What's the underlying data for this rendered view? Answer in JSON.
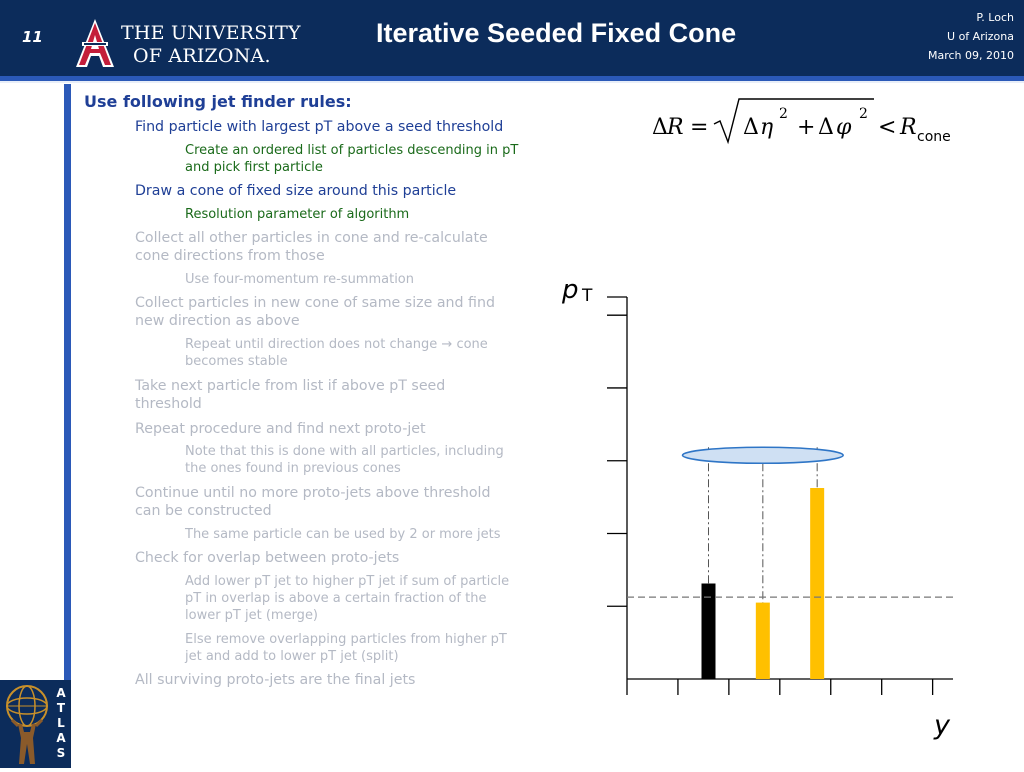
{
  "header": {
    "slide_number": "11",
    "university_line1": "THE UNIVERSITY",
    "university_line2": "OF ARIZONA.",
    "title": "Iterative Seeded Fixed Cone",
    "author": "P. Loch",
    "affiliation": "U of Arizona",
    "date": "March 09, 2010"
  },
  "colors": {
    "header_bg": "#0c2c5b",
    "accent_blue": "#2b59b8",
    "arizona_red": "#c41e3a",
    "level1_text": "#1f3f96",
    "level2_green": "#1a6a1a",
    "dimmed_text": "#b4b9c4",
    "black_bar": "#000000",
    "gold_bar": "#ffc000"
  },
  "content": {
    "heading": "Use following jet finder rules:",
    "items": [
      {
        "level": 2,
        "style": "blue",
        "lines": [
          "Find particle with largest pT above a seed threshold"
        ]
      },
      {
        "level": 3,
        "style": "green",
        "lines": [
          "Create an ordered list of particles descending in pT",
          "and pick first particle"
        ]
      },
      {
        "level": 2,
        "style": "blue",
        "lines": [
          "Draw a cone of fixed size around this particle"
        ]
      },
      {
        "level": 3,
        "style": "green",
        "lines": [
          "Resolution parameter of algorithm"
        ]
      },
      {
        "level": 2,
        "style": "gray",
        "lines": [
          "Collect all other particles in cone and re-calculate",
          "cone directions from those"
        ]
      },
      {
        "level": 3,
        "style": "gray",
        "lines": [
          "Use four-momentum re-summation"
        ]
      },
      {
        "level": 2,
        "style": "gray",
        "lines": [
          "Collect particles in new cone of same size and find",
          "new direction as above"
        ]
      },
      {
        "level": 3,
        "style": "gray",
        "lines": [
          "Repeat until direction does not change → cone",
          "becomes stable"
        ]
      },
      {
        "level": 2,
        "style": "gray",
        "lines": [
          "Take next particle from list if above pT  seed",
          "threshold"
        ]
      },
      {
        "level": 2,
        "style": "gray",
        "lines": [
          "Repeat procedure and find next proto-jet"
        ]
      },
      {
        "level": 3,
        "style": "gray",
        "lines": [
          "Note that this is done with all particles, including",
          "the ones found in previous cones"
        ]
      },
      {
        "level": 2,
        "style": "gray",
        "lines": [
          "Continue until no more proto-jets above threshold",
          "can be constructed"
        ]
      },
      {
        "level": 3,
        "style": "gray",
        "lines": [
          "The same particle can be used by 2 or more jets"
        ]
      },
      {
        "level": 2,
        "style": "gray",
        "lines": [
          "Check for overlap between proto-jets"
        ]
      },
      {
        "level": 3,
        "style": "gray",
        "lines": [
          "Add lower pT jet  to higher pT jet if sum of particle",
          "pT in overlap  is above a certain fraction of the",
          "lower pT jet (merge)"
        ]
      },
      {
        "level": 3,
        "style": "gray",
        "lines": [
          "Else remove overlapping  particles from higher  pT",
          "jet and add to lower pT jet (split)"
        ]
      },
      {
        "level": 2,
        "style": "gray",
        "lines": [
          "All surviving proto-jets are the final jets"
        ]
      }
    ]
  },
  "formula": {
    "delta": "Δ",
    "R": "R",
    "equals": "=",
    "eta": "η",
    "plus": "+",
    "phi": "φ",
    "exponent": "2",
    "less_than": "<",
    "cone_subscript": "cone"
  },
  "chart_data": {
    "type": "bar",
    "ylabel_main": "p",
    "ylabel_sub": "T",
    "xlabel": "y",
    "grid": false,
    "ylim": [
      0,
      7
    ],
    "xlim": [
      0,
      6
    ],
    "bars": [
      {
        "x": 1.5,
        "value": 1.75,
        "color": "#000000",
        "dashdot_guide": true
      },
      {
        "x": 2.5,
        "value": 1.4,
        "color": "#ffc000",
        "dashdot_guide": true
      },
      {
        "x": 3.5,
        "value": 3.5,
        "color": "#ffc000",
        "dashdot_guide": true
      }
    ],
    "threshold_line": {
      "value": 1.5,
      "style": "dashed"
    },
    "cone_ellipse": {
      "x_from": 1.5,
      "x_to": 3.5,
      "y": 4.1
    }
  },
  "sidebar": {
    "logo_letters": [
      "A",
      "T",
      "L",
      "A",
      "S"
    ]
  }
}
